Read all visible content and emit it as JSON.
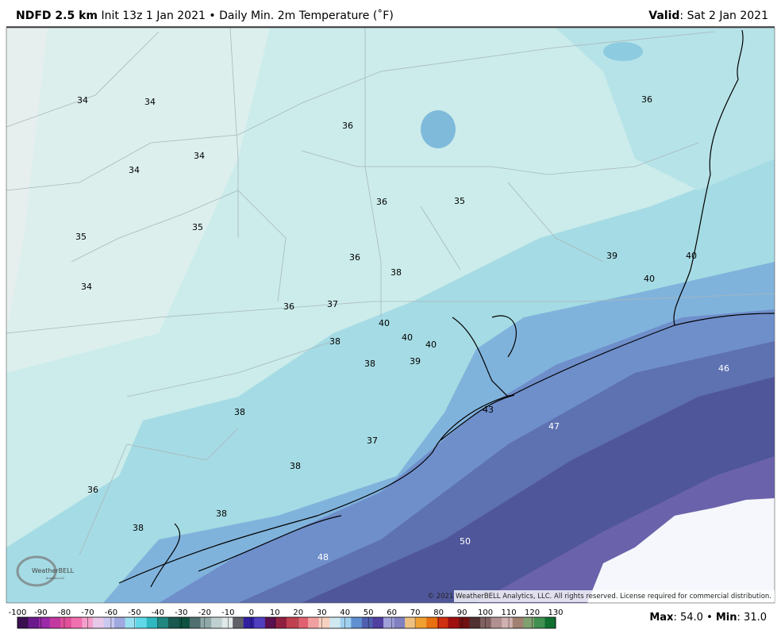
{
  "header": {
    "product": "NDFD 2.5 km",
    "init": "Init 13z 1 Jan 2021",
    "bullet": "•",
    "field": "Daily Min. 2m Temperature (˚F)",
    "valid_label": "Valid",
    "valid": ": Sat 2 Jan 2021"
  },
  "map": {
    "labels": [
      34,
      34,
      36,
      36,
      34,
      34,
      36,
      35,
      35,
      35,
      36,
      38,
      39,
      40,
      40,
      34,
      36,
      37,
      40,
      40,
      40,
      38,
      38,
      39,
      46,
      43,
      47,
      38,
      37,
      38,
      36,
      38,
      38,
      50,
      48
    ],
    "copyright": "© 2021 WeatherBELL Analytics, LLC. All rights reserved. License required for commercial distribution.",
    "logo": "WeatherBELL",
    "logo_sub": "Analytics LLC"
  },
  "colorbar": {
    "ticks": [
      -100,
      -90,
      -80,
      -70,
      -60,
      -50,
      -40,
      -30,
      -20,
      -10,
      0,
      10,
      20,
      30,
      40,
      50,
      60,
      70,
      80,
      90,
      100,
      110,
      120,
      130
    ]
  },
  "footer": {
    "max_label": "Max",
    "max": ": 54.0",
    "bullet": "•",
    "min_label": "Min",
    "min": ": 31.0"
  }
}
